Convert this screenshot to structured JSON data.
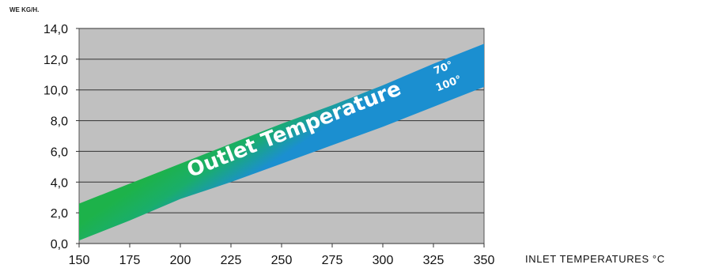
{
  "chart_data": {
    "type": "area",
    "title": "",
    "ylabel": "WE KG/H.",
    "xlabel": "INLET TEMPERATURES °C",
    "x_ticks": [
      "150",
      "175",
      "200",
      "225",
      "250",
      "275",
      "300",
      "325",
      "350"
    ],
    "y_ticks": [
      "0,0",
      "2,0",
      "4,0",
      "6,0",
      "8,0",
      "10,0",
      "12,0",
      "14,0"
    ],
    "xlim": [
      150,
      350
    ],
    "ylim": [
      0,
      14
    ],
    "grid": "horizontal",
    "band_label": "Outlet Temperature",
    "series": [
      {
        "name": "70°",
        "x": [
          150,
          175,
          200,
          225,
          250,
          275,
          300,
          325,
          350
        ],
        "values": [
          2.6,
          3.9,
          5.2,
          6.5,
          7.8,
          9.0,
          10.3,
          11.7,
          13.0
        ],
        "color": "#1db24a"
      },
      {
        "name": "100°",
        "x": [
          150,
          175,
          200,
          225,
          250,
          275,
          300,
          325,
          350
        ],
        "values": [
          0.2,
          1.5,
          2.9,
          4.0,
          5.2,
          6.4,
          7.6,
          8.9,
          10.2
        ],
        "color": "#1b8fd0"
      }
    ]
  }
}
